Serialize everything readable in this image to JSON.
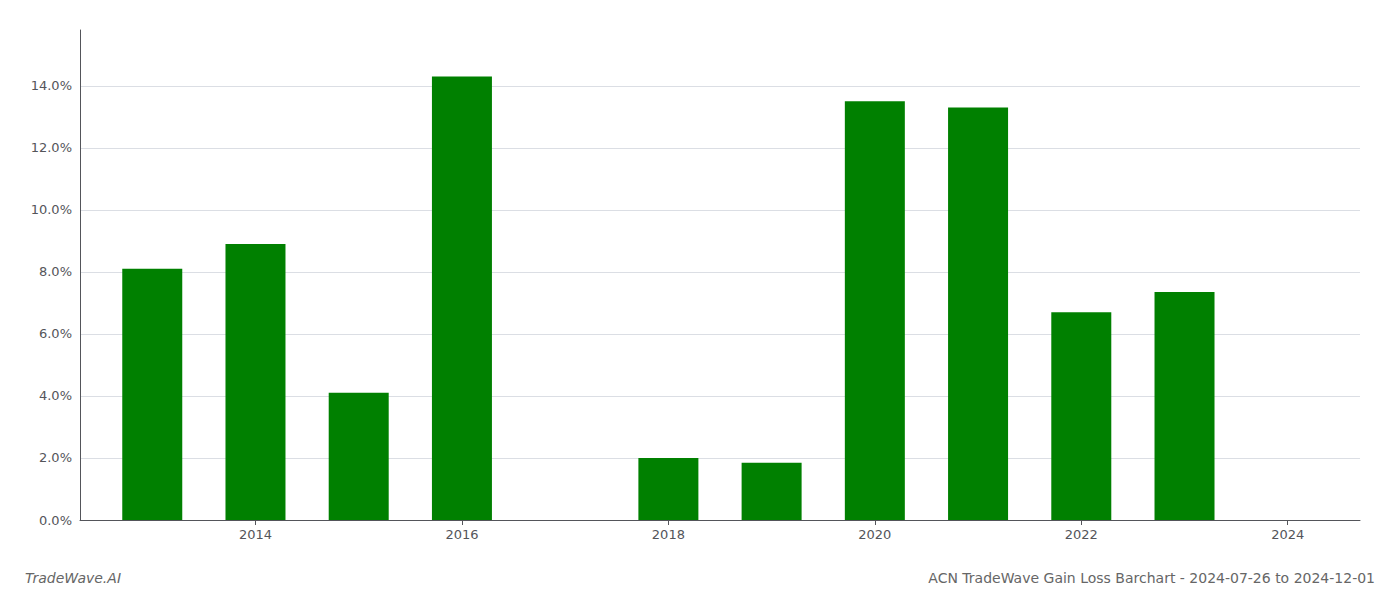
{
  "chart_data": {
    "type": "bar",
    "title": "ACN TradeWave Gain Loss Barchart - 2024-07-26 to 2024-12-01",
    "annotations": [
      "TradeWave.AI"
    ],
    "x": [
      2013,
      2014,
      2015,
      2016,
      2018,
      2019,
      2020,
      2021,
      2022,
      2023
    ],
    "values": [
      0.081,
      0.089,
      0.041,
      0.143,
      0.02,
      0.0185,
      0.135,
      0.133,
      0.067,
      0.0735
    ],
    "color": "#008000",
    "xlim": [
      2012.3,
      2024.7
    ],
    "xticks": [
      2014,
      2016,
      2018,
      2020,
      2022,
      2024
    ],
    "ylim": [
      0,
      0.158
    ],
    "yticks": [
      {
        "value": 0.0,
        "label": "0.0%"
      },
      {
        "value": 0.02,
        "label": "2.0%"
      },
      {
        "value": 0.04,
        "label": "4.0%"
      },
      {
        "value": 0.06,
        "label": "6.0%"
      },
      {
        "value": 0.08,
        "label": "8.0%"
      },
      {
        "value": 0.1,
        "label": "10.0%"
      },
      {
        "value": 0.12,
        "label": "12.0%"
      },
      {
        "value": 0.14,
        "label": "14.0%"
      }
    ],
    "grid": true
  }
}
